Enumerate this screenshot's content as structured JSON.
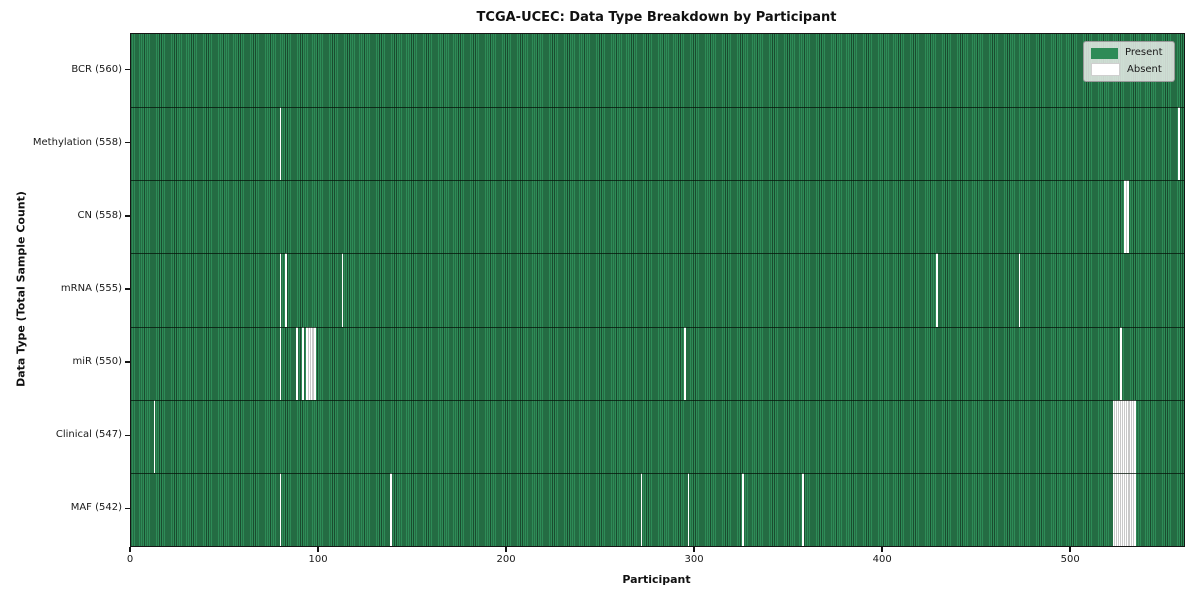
{
  "colors": {
    "present": "#2e8b57",
    "present_edge": "#1a4c2f",
    "absent": "#ffffff",
    "absent_run_separator": "#c9c9c9",
    "spine": "#151515",
    "legend_bg": "rgba(233,236,233,0.85)"
  },
  "chart_data": {
    "type": "heatmap",
    "title": "TCGA-UCEC: Data Type Breakdown by Participant",
    "xlabel": "Participant",
    "ylabel": "Data Type (Total Sample Count)",
    "xlim": [
      0,
      560
    ],
    "x_ticks": [
      0,
      100,
      200,
      300,
      400,
      500
    ],
    "n_participants": 560,
    "cell_states": [
      "Present",
      "Absent"
    ],
    "legend": [
      {
        "label": "Present",
        "color": "#2e8b57"
      },
      {
        "label": "Absent",
        "color": "#ffffff"
      }
    ],
    "legend_position": "upper right",
    "grid": false,
    "rows": [
      {
        "label": "BCR (560)",
        "data_type": "BCR",
        "total_samples": 560,
        "absent_participants": []
      },
      {
        "label": "Methylation (558)",
        "data_type": "Methylation",
        "total_samples": 558,
        "absent_participants": [
          79,
          557
        ]
      },
      {
        "label": "CN (558)",
        "data_type": "CN",
        "total_samples": 558,
        "absent_participants": [
          528,
          529
        ]
      },
      {
        "label": "mRNA (555)",
        "data_type": "mRNA",
        "total_samples": 555,
        "absent_participants": [
          79,
          82,
          112,
          428,
          472
        ]
      },
      {
        "label": "miR (550)",
        "data_type": "miR",
        "total_samples": 550,
        "absent_participants": [
          79,
          88,
          91,
          93,
          94,
          95,
          96,
          97,
          294,
          526
        ]
      },
      {
        "label": "Clinical (547)",
        "data_type": "Clinical",
        "total_samples": 547,
        "absent_participants": [
          12,
          522,
          523,
          524,
          525,
          526,
          527,
          528,
          529,
          530,
          531,
          532,
          533
        ]
      },
      {
        "label": "MAF (542)",
        "data_type": "MAF",
        "total_samples": 542,
        "absent_participants": [
          79,
          138,
          271,
          296,
          325,
          357,
          522,
          523,
          524,
          525,
          526,
          527,
          528,
          529,
          530,
          531,
          532,
          533
        ]
      }
    ]
  }
}
